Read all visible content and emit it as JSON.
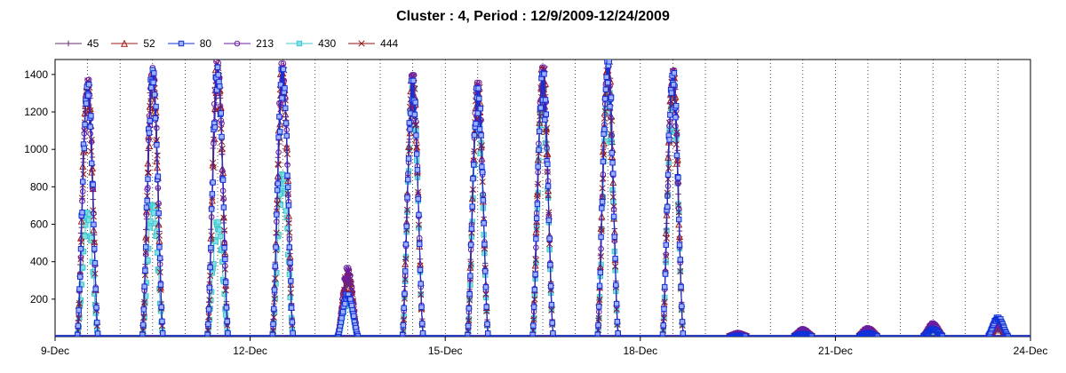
{
  "chart_data": {
    "type": "line",
    "title": "Cluster : 4, Period : 12/9/2009-12/24/2009",
    "xlabel": "",
    "ylabel": "",
    "x_ticks": [
      "9-Dec",
      "12-Dec",
      "15-Dec",
      "18-Dec",
      "21-Dec",
      "24-Dec"
    ],
    "x_tick_days": [
      0,
      3,
      6,
      9,
      12,
      15
    ],
    "xlim": [
      0,
      15
    ],
    "y_ticks": [
      "200",
      "400",
      "600",
      "800",
      "1000",
      "1200",
      "1400"
    ],
    "ylim": [
      0,
      1480
    ],
    "legend_position": "top-left",
    "grid": "dotted vertical lines at midnight and noon",
    "day_peaks_note_values": true,
    "series": [
      {
        "name": "45",
        "color": "#6b2a74",
        "marker": "plus",
        "daily_peaks": [
          1330,
          1380,
          1420,
          1400,
          300,
          1340,
          1320,
          1380,
          1440,
          1380,
          10,
          20,
          25,
          40,
          40
        ]
      },
      {
        "name": "52",
        "color": "#a01818",
        "marker": "triangle",
        "daily_peaks": [
          1320,
          1380,
          1420,
          1380,
          320,
          1350,
          1310,
          1400,
          1430,
          1390,
          15,
          25,
          30,
          45,
          50
        ]
      },
      {
        "name": "80",
        "color": "#1030d8",
        "marker": "square",
        "daily_peaks": [
          1320,
          1400,
          1410,
          1400,
          220,
          1340,
          1300,
          1380,
          1440,
          1380,
          5,
          15,
          20,
          40,
          100
        ]
      },
      {
        "name": "213",
        "color": "#6a1ea0",
        "marker": "circle",
        "daily_peaks": [
          1350,
          1410,
          1440,
          1430,
          360,
          1370,
          1330,
          1410,
          1450,
          1400,
          20,
          40,
          45,
          70,
          70
        ]
      },
      {
        "name": "430",
        "color": "#40c8d0",
        "marker": "square",
        "daily_peaks": [
          650,
          700,
          600,
          850,
          200,
          1300,
          1200,
          1300,
          1300,
          1330,
          5,
          10,
          15,
          30,
          90
        ]
      },
      {
        "name": "444",
        "color": "#8e1010",
        "marker": "x",
        "daily_peaks": [
          1340,
          1390,
          1430,
          1410,
          340,
          1360,
          1320,
          1400,
          1440,
          1390,
          15,
          30,
          40,
          60,
          60
        ]
      }
    ]
  }
}
